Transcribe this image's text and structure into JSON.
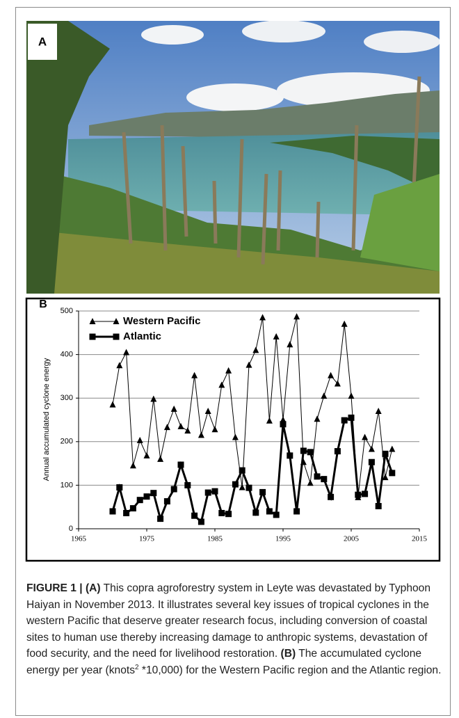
{
  "panel_a": {
    "label": "A"
  },
  "chart_data": {
    "type": "line",
    "panel_label": "B",
    "y_label": "Annual accumulated cyclone energy",
    "x": [
      1970,
      1971,
      1972,
      1973,
      1974,
      1975,
      1976,
      1977,
      1978,
      1979,
      1980,
      1981,
      1982,
      1983,
      1984,
      1985,
      1986,
      1987,
      1988,
      1989,
      1990,
      1991,
      1992,
      1993,
      1994,
      1995,
      1996,
      1997,
      1998,
      1999,
      2000,
      2001,
      2002,
      2003,
      2004,
      2005,
      2006,
      2007,
      2008,
      2009,
      2010,
      2011
    ],
    "series": [
      {
        "name": "Western Pacific",
        "color": "#000000",
        "marker": "triangle",
        "line_width": 1,
        "values": [
          285,
          375,
          405,
          145,
          203,
          168,
          298,
          160,
          233,
          275,
          235,
          225,
          352,
          215,
          270,
          228,
          330,
          363,
          210,
          95,
          376,
          410,
          485,
          248,
          441,
          250,
          423,
          487,
          153,
          105,
          252,
          305,
          352,
          333,
          470,
          305,
          72,
          210,
          183,
          270,
          118,
          183
        ]
      },
      {
        "name": "Atlantic",
        "color": "#000000",
        "marker": "square",
        "line_width": 3,
        "values": [
          40,
          95,
          36,
          47,
          66,
          74,
          82,
          23,
          63,
          91,
          147,
          100,
          30,
          16,
          83,
          86,
          36,
          34,
          102,
          134,
          94,
          37,
          84,
          40,
          32,
          240,
          168,
          40,
          179,
          176,
          120,
          114,
          73,
          178,
          249,
          255,
          78,
          80,
          153,
          52,
          172,
          128
        ]
      }
    ],
    "xlim": [
      1965,
      2015
    ],
    "xticks": [
      1965,
      1975,
      1985,
      1995,
      2005,
      2015
    ],
    "ylim": [
      0,
      500
    ],
    "yticks": [
      0,
      100,
      200,
      300,
      400,
      500
    ],
    "grid": true,
    "legend": "upper-left"
  },
  "caption": {
    "segments": [
      {
        "text": "FIGURE 1 | (A)",
        "bold": true
      },
      {
        "text": " This copra agroforestry system in Leyte was devastated by Typhoon Haiyan in November 2013. It illustrates several key issues of tropical cyclones in the western Pacific that deserve greater research focus, including conversion of coastal sites to human use thereby increasing damage to anthropic systems, devastation of food security, and the need for livelihood restoration. "
      },
      {
        "text": "(B)",
        "bold": true
      },
      {
        "text": " The accumulated cyclone energy per year (knots"
      },
      {
        "text": "2",
        "sup": true
      },
      {
        "text": " *10,000) for the Western Pacific region and the Atlantic region."
      }
    ]
  }
}
